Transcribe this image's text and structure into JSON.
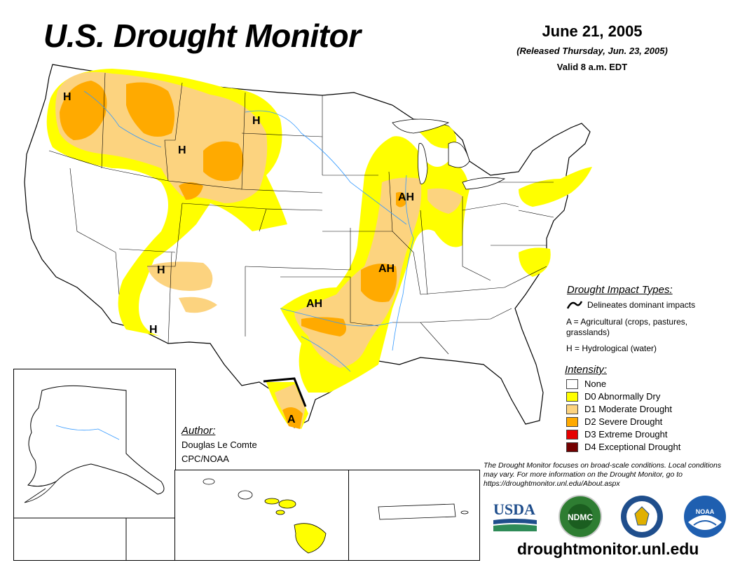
{
  "header": {
    "title": "U.S. Drought Monitor",
    "date": "June 21, 2005",
    "released": "(Released Thursday, Jun. 23, 2005)",
    "valid": "Valid 8 a.m. EDT"
  },
  "impact_types": {
    "title": "Drought Impact Types:",
    "items": [
      {
        "symbol": "~",
        "label": "Delineates dominant impacts"
      },
      {
        "symbol": "A",
        "label": "A = Agricultural (crops, pastures, grasslands)"
      },
      {
        "symbol": "H",
        "label": "H = Hydrological (water)"
      }
    ]
  },
  "intensity": {
    "title": "Intensity:",
    "levels": [
      {
        "label": "None",
        "color": "#ffffff"
      },
      {
        "label": "D0 Abnormally Dry",
        "color": "#ffff00"
      },
      {
        "label": "D1 Moderate Drought",
        "color": "#fcd37f"
      },
      {
        "label": "D2 Severe Drought",
        "color": "#ffaa00"
      },
      {
        "label": "D3 Extreme Drought",
        "color": "#e60000"
      },
      {
        "label": "D4 Exceptional Drought",
        "color": "#730000"
      }
    ]
  },
  "map_labels": [
    "H",
    "H",
    "H",
    "H",
    "H",
    "AH",
    "AH",
    "AH",
    "A"
  ],
  "author": {
    "title": "Author:",
    "name": "Douglas Le Comte",
    "org": "CPC/NOAA"
  },
  "note": "The Drought Monitor focuses on broad-scale conditions. Local conditions may vary. For more information on the Drought Monitor, go to https://droughtmonitor.unl.edu/About.aspx",
  "logos": {
    "usda": "USDA",
    "ndmc": "NDMC",
    "noaa": "NOAA"
  },
  "footer_url": "droughtmonitor.unl.edu"
}
